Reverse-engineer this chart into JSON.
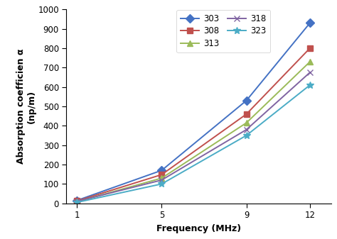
{
  "frequencies": [
    1,
    5,
    9,
    12
  ],
  "series": [
    {
      "label": "303",
      "values": [
        15,
        170,
        530,
        930
      ],
      "color": "#4472C4",
      "marker": "D",
      "markersize": 6
    },
    {
      "label": "308",
      "values": [
        12,
        148,
        460,
        800
      ],
      "color": "#C0504D",
      "marker": "s",
      "markersize": 6
    },
    {
      "label": "313",
      "values": [
        8,
        130,
        415,
        730
      ],
      "color": "#9BBB59",
      "marker": "^",
      "markersize": 6
    },
    {
      "label": "318",
      "values": [
        10,
        120,
        380,
        675
      ],
      "color": "#8064A2",
      "marker": "x",
      "markersize": 6
    },
    {
      "label": "323",
      "values": [
        5,
        100,
        350,
        610
      ],
      "color": "#4BACC6",
      "marker": "*",
      "markersize": 7
    }
  ],
  "xlabel": "Frequency (MHz)",
  "ylabel": "Absorption coefficien α\n(np/m)",
  "xlim": [
    0.5,
    13
  ],
  "ylim": [
    0,
    1000
  ],
  "xticks": [
    1,
    5,
    9,
    12
  ],
  "yticks": [
    0,
    100,
    200,
    300,
    400,
    500,
    600,
    700,
    800,
    900,
    1000
  ],
  "background_color": "#ffffff",
  "linewidth": 1.4,
  "legend_ncol": 2,
  "legend_fontsize": 8.5
}
